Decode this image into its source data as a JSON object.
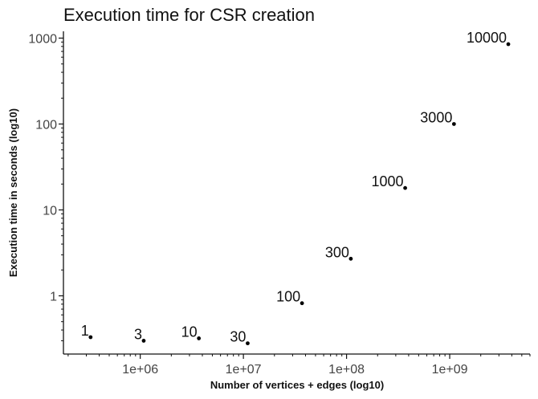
{
  "chart_data": {
    "type": "scatter",
    "title": "Execution time for CSR creation",
    "xlabel": "Number of vertices + edges (log10)",
    "ylabel": "Execution time in seconds (log10)",
    "x_scale": "log10",
    "y_scale": "log10",
    "xlim": [
      180000,
      6000000000
    ],
    "ylim": [
      0.21,
      1200
    ],
    "x_ticks": [
      {
        "value": 1000000,
        "label": "1e+06"
      },
      {
        "value": 10000000,
        "label": "1e+07"
      },
      {
        "value": 100000000,
        "label": "1e+08"
      },
      {
        "value": 1000000000,
        "label": "1e+09"
      }
    ],
    "y_ticks": [
      {
        "value": 1,
        "label": "1"
      },
      {
        "value": 10,
        "label": "10"
      },
      {
        "value": 100,
        "label": "100"
      },
      {
        "value": 1000,
        "label": "1000"
      }
    ],
    "grid": false,
    "point_color": "#000000",
    "points": [
      {
        "label": "1",
        "x": 330000,
        "y": 0.33
      },
      {
        "label": "3",
        "x": 1080000,
        "y": 0.3
      },
      {
        "label": "10",
        "x": 3700000,
        "y": 0.32
      },
      {
        "label": "30",
        "x": 11000000,
        "y": 0.28
      },
      {
        "label": "100",
        "x": 37000000,
        "y": 0.82
      },
      {
        "label": "300",
        "x": 110000000,
        "y": 2.7
      },
      {
        "label": "1000",
        "x": 370000000,
        "y": 18
      },
      {
        "label": "3000",
        "x": 1100000000,
        "y": 100
      },
      {
        "label": "10000",
        "x": 3700000000,
        "y": 850
      }
    ]
  }
}
